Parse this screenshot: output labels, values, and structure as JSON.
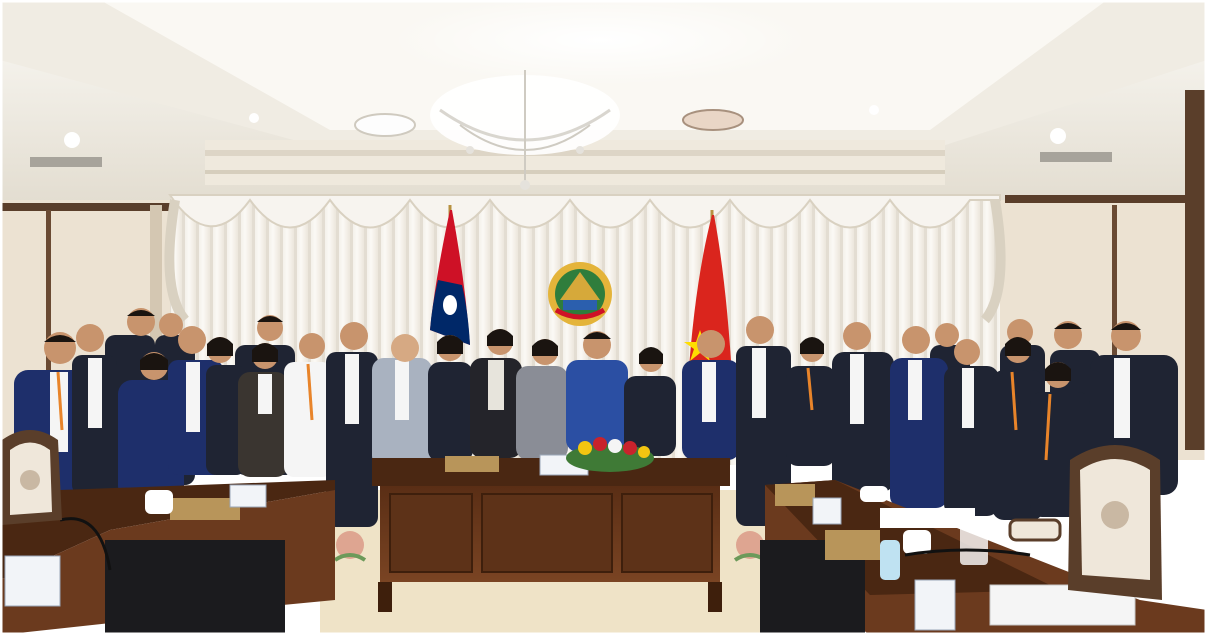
{
  "photo": {
    "subject": "group-photo",
    "colors": {
      "ceiling": "#f4f1ea",
      "ceiling_shadow": "#d9d3c6",
      "wall": "#ece2d2",
      "wall_trim": "#5a3e2a",
      "curtain": "#f6f3ee",
      "curtain_shadow": "#ddd6cb",
      "carpet": "#efe3c7",
      "table_wood": "#6b3a1e",
      "table_top": "#4a2712",
      "suit_dark": "#1f2433",
      "suit_navy": "#1e2f6b",
      "suit_grey": "#a9b2c0",
      "shirt_white": "#f5f5f5",
      "lanyard": "#e8842a",
      "skin": "#c8946d",
      "hair": "#1a1410",
      "laos_red": "#ce1126",
      "laos_blue": "#002868",
      "vietnam_red": "#da251d",
      "vietnam_yellow": "#ffde00",
      "chair_fabric": "#efe7da",
      "flowers_red": "#c8232c",
      "flowers_yellow": "#f2c511"
    },
    "icons": [
      "chandelier-icon",
      "laos-flag-icon",
      "vietnam-flag-icon",
      "lao-emblem-icon",
      "flower-arrangement-icon"
    ]
  }
}
